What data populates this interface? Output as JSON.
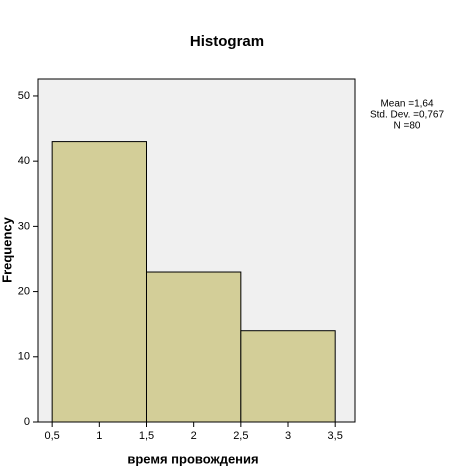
{
  "chart_data": {
    "type": "histogram",
    "title": "Histogram",
    "xlabel": "время провождения",
    "ylabel": "Frequency",
    "bins": [
      0.5,
      1.5,
      2.5,
      3.5
    ],
    "values": [
      43,
      23,
      14
    ],
    "color": "#d3ce98",
    "xlim": [
      0.35,
      3.71
    ],
    "ylim": [
      0,
      52.6
    ],
    "xticks": [
      {
        "value": 0.5,
        "label": "0,5"
      },
      1,
      {
        "value": 1.5,
        "label": "1,5"
      },
      2,
      {
        "value": 2.5,
        "label": "2,5"
      },
      3,
      {
        "value": 3.5,
        "label": "3,5"
      }
    ],
    "yticks": [
      0,
      10,
      20,
      30,
      40,
      50
    ],
    "annotations": [
      "Mean =1,64",
      "Std. Dev. =0,767",
      "N =80"
    ]
  }
}
